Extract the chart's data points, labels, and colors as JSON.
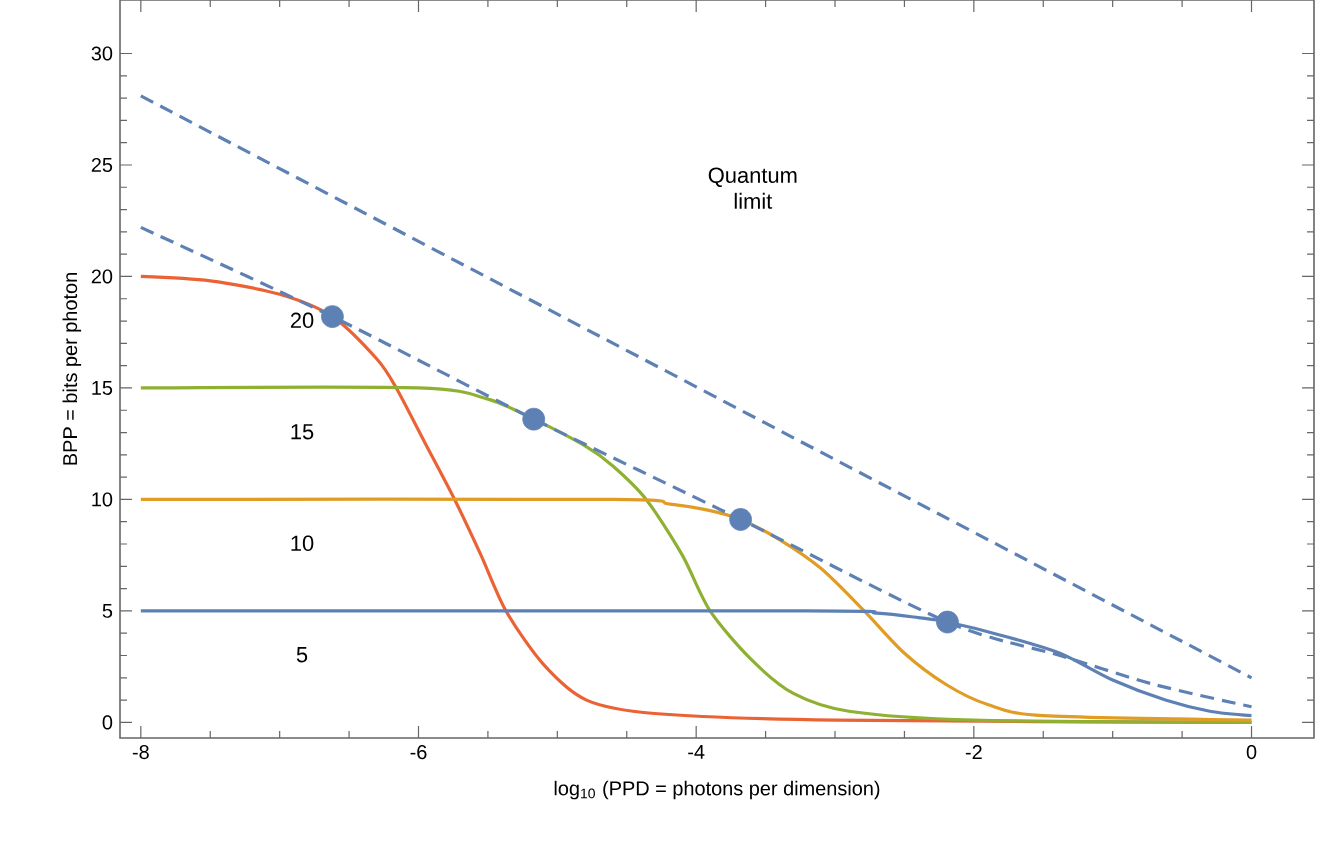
{
  "chart_data": {
    "type": "line",
    "xlabel": "log$_{10}$ (PPD = photons per dimension)",
    "ylabel": "BPP = bits per photon",
    "xlim": [
      -8.15,
      0.45
    ],
    "ylim": [
      -0.7,
      32.4
    ],
    "xticks": [
      -8,
      -6,
      -4,
      -2,
      0
    ],
    "yticks": [
      0,
      5,
      10,
      15,
      20,
      25,
      30
    ],
    "annotations": [
      "Quantum limit"
    ],
    "series": [
      {
        "name": "20",
        "color": "#eb6235",
        "x": [
          -8,
          -7.5,
          -7,
          -6.62,
          -6.3,
          -6.16,
          -5.95,
          -5.74,
          -5.55,
          -5.37,
          -5.1,
          -4.79,
          -4.3,
          -3,
          0
        ],
        "values": [
          20,
          19.8,
          19.2,
          18.2,
          16.3,
          15,
          12.5,
          10,
          7.5,
          5,
          2.6,
          1.0,
          0.4,
          0.1,
          0
        ]
      },
      {
        "name": "15",
        "color": "#8fb032",
        "x": [
          -8,
          -6,
          -5.5,
          -5.17,
          -4.8,
          -4.6,
          -4.36,
          -4.1,
          -3.9,
          -3.6,
          -3.3,
          -2.9,
          -2,
          0
        ],
        "values": [
          15,
          15,
          14.5,
          13.6,
          12.4,
          11.5,
          10,
          7.5,
          5,
          2.8,
          1.3,
          0.5,
          0.1,
          0
        ]
      },
      {
        "name": "10",
        "color": "#e19c24",
        "x": [
          -8,
          -4.6,
          -4.2,
          -3.9,
          -3.68,
          -3.4,
          -3.1,
          -2.79,
          -2.5,
          -2.2,
          -1.9,
          -1.5,
          0
        ],
        "values": [
          10,
          10,
          9.8,
          9.5,
          9.1,
          8.2,
          6.9,
          5,
          3.1,
          1.7,
          0.8,
          0.3,
          0.1
        ]
      },
      {
        "name": "5",
        "color": "#5e81b5",
        "x": [
          -8,
          -3.2,
          -2.7,
          -2.4,
          -2.19,
          -1.8,
          -1.38,
          -1,
          -0.62,
          -0.3,
          0
        ],
        "values": [
          5,
          5,
          4.9,
          4.7,
          4.5,
          3.9,
          3.1,
          1.9,
          1.0,
          0.5,
          0.3
        ]
      },
      {
        "color": "#5e81b5",
        "line_style": "dashed",
        "x": [
          -8,
          0
        ],
        "values": [
          28.1,
          2.0
        ]
      },
      {
        "color": "#5e81b5",
        "line_style": "dashed",
        "x": [
          -8,
          -6.62,
          -5.17,
          -3.68,
          -2.19,
          -1.38,
          -0.7,
          0
        ],
        "values": [
          22.2,
          18.2,
          13.6,
          9.1,
          4.5,
          3.0,
          1.7,
          0.7
        ]
      },
      {
        "type": "scatter",
        "marker": "circle",
        "color": "#5e81b5",
        "x": [
          -6.62,
          -5.17,
          -3.68,
          -2.19
        ],
        "values": [
          18.2,
          13.6,
          9.1,
          4.5
        ]
      }
    ]
  }
}
